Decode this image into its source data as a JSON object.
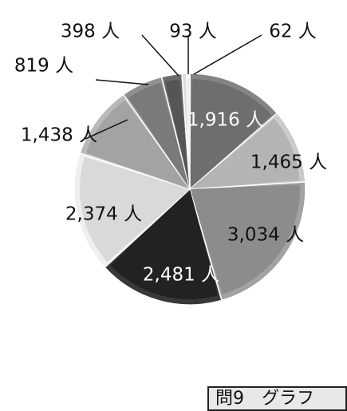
{
  "chart_data": {
    "type": "pie",
    "title": "",
    "start_angle_deg": 0,
    "direction": "clockwise",
    "slices": [
      {
        "value": 1916,
        "label": "1,916 人",
        "color": "#6e6e6e",
        "label_inside": true
      },
      {
        "value": 1465,
        "label": "1,465 人",
        "color": "#b4b4b4",
        "label_inside": false
      },
      {
        "value": 3034,
        "label": "3,034 人",
        "color": "#8c8c8c",
        "label_inside": false
      },
      {
        "value": 2481,
        "label": "2,481 人",
        "color": "#222222",
        "label_inside": true
      },
      {
        "value": 2374,
        "label": "2,374 人",
        "color": "#d9d9d9",
        "label_inside": false
      },
      {
        "value": 1438,
        "label": "1,438 人",
        "color": "#a3a3a3",
        "label_inside": false
      },
      {
        "value": 819,
        "label": "819 人",
        "color": "#7a7a7a",
        "label_inside": false
      },
      {
        "value": 398,
        "label": "398 人",
        "color": "#555555",
        "label_inside": false
      },
      {
        "value": 93,
        "label": "93 人",
        "color": "#c8c8c8",
        "label_inside": false
      },
      {
        "value": 62,
        "label": "62 人",
        "color": "#e6e6e6",
        "label_inside": false
      }
    ]
  },
  "footer": {
    "tag": "問9　グラフ"
  }
}
